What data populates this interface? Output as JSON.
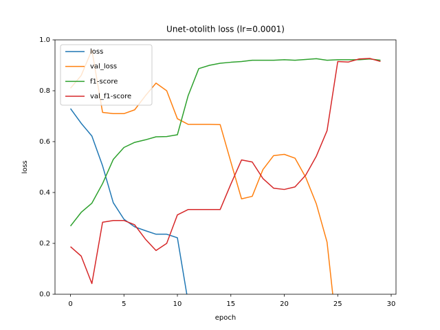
{
  "chart_data": {
    "type": "line",
    "title": "Unet-otolith loss (lr=0.0001)",
    "x_label": "epoch",
    "y_label": "loss",
    "x": [
      0,
      1,
      2,
      3,
      4,
      5,
      6,
      7,
      8,
      9,
      10,
      11,
      12,
      13,
      14,
      15,
      16,
      17,
      18,
      19,
      20,
      21,
      22,
      23,
      24,
      25,
      26,
      27,
      28,
      29
    ],
    "series": [
      {
        "name": "loss",
        "color": "#1f77b4",
        "values": [
          0.73,
          0.672,
          0.622,
          0.505,
          0.36,
          0.295,
          0.265,
          0.25,
          0.236,
          0.236,
          0.222,
          -0.03,
          null,
          null,
          null,
          null,
          null,
          null,
          null,
          null,
          null,
          null,
          null,
          null,
          null,
          null,
          null,
          null,
          null,
          null
        ]
      },
      {
        "name": "val_loss",
        "color": "#ff7f0e",
        "values": [
          0.81,
          0.86,
          0.96,
          0.715,
          0.71,
          0.71,
          0.725,
          0.78,
          0.83,
          0.8,
          0.69,
          0.668,
          0.668,
          0.668,
          0.667,
          0.52,
          0.375,
          0.385,
          0.49,
          0.545,
          0.55,
          0.535,
          0.46,
          0.355,
          0.205,
          -0.18,
          null,
          null,
          null,
          null
        ]
      },
      {
        "name": "f1-score",
        "color": "#2ca02c",
        "values": [
          0.268,
          0.322,
          0.358,
          0.435,
          0.53,
          0.577,
          0.597,
          0.607,
          0.619,
          0.62,
          0.627,
          0.78,
          0.887,
          0.9,
          0.908,
          0.912,
          0.915,
          0.92,
          0.92,
          0.92,
          0.922,
          0.92,
          0.923,
          0.926,
          0.92,
          0.922,
          0.922,
          0.922,
          0.925,
          0.92
        ]
      },
      {
        "name": "val_f1-score",
        "color": "#d62728",
        "values": [
          0.187,
          0.15,
          0.042,
          0.283,
          0.29,
          0.29,
          0.273,
          0.217,
          0.172,
          0.2,
          0.312,
          0.333,
          0.333,
          0.333,
          0.333,
          0.433,
          0.528,
          0.52,
          0.455,
          0.417,
          0.412,
          0.422,
          0.468,
          0.543,
          0.643,
          0.915,
          0.913,
          0.925,
          0.927,
          0.915
        ]
      }
    ],
    "xlim": [
      -1.45,
      30.45
    ],
    "ylim": [
      0,
      1
    ],
    "xticks": [
      0,
      5,
      10,
      15,
      20,
      25,
      30
    ],
    "yticks": [
      {
        "value": 0,
        "label": "0.0"
      },
      0.2,
      0.4,
      0.6,
      0.8,
      {
        "value": 1,
        "label": "1.0"
      }
    ],
    "grid": false,
    "legend_position": "upper-left"
  }
}
